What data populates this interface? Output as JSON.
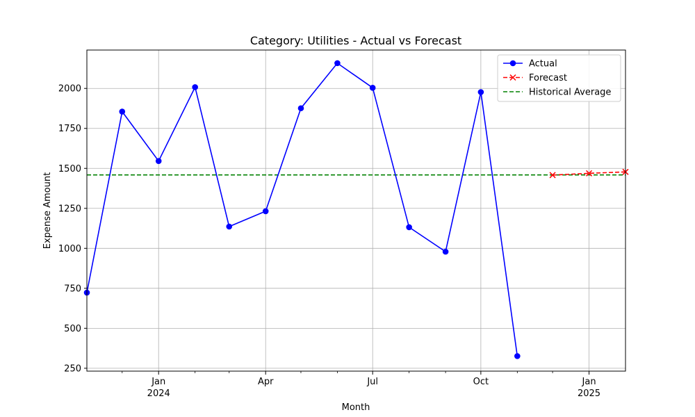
{
  "chart_data": {
    "type": "line",
    "title": "Category: Utilities - Actual vs Forecast",
    "xlabel": "Month",
    "ylabel": "Expense Amount",
    "x_range": [
      "2023-11-01",
      "2025-02-01"
    ],
    "ylim": [
      232,
      2240
    ],
    "y_ticks": [
      250,
      500,
      750,
      1000,
      1250,
      1500,
      1750,
      2000
    ],
    "x_major_ticks": [
      {
        "date": "2024-01-01",
        "label": "Jan",
        "sublabel": "2024"
      },
      {
        "date": "2024-04-01",
        "label": "Apr",
        "sublabel": ""
      },
      {
        "date": "2024-07-01",
        "label": "Jul",
        "sublabel": ""
      },
      {
        "date": "2024-10-01",
        "label": "Oct",
        "sublabel": ""
      },
      {
        "date": "2025-01-01",
        "label": "Jan",
        "sublabel": "2025"
      }
    ],
    "x_minor_ticks": [
      "2023-12-01",
      "2024-02-01",
      "2024-03-01",
      "2024-05-01",
      "2024-06-01",
      "2024-08-01",
      "2024-09-01",
      "2024-11-01",
      "2024-12-01"
    ],
    "grid": true,
    "legend_position": "top-right",
    "series": [
      {
        "name": "Actual",
        "style": "solid",
        "marker": "circle",
        "color": "#0000ff",
        "points": [
          {
            "x": "2023-11-01",
            "y": 723
          },
          {
            "x": "2023-12-01",
            "y": 1855
          },
          {
            "x": "2024-01-01",
            "y": 1546
          },
          {
            "x": "2024-02-01",
            "y": 2008
          },
          {
            "x": "2024-03-01",
            "y": 1136
          },
          {
            "x": "2024-04-01",
            "y": 1232
          },
          {
            "x": "2024-05-01",
            "y": 1876
          },
          {
            "x": "2024-06-01",
            "y": 2158
          },
          {
            "x": "2024-07-01",
            "y": 2004
          },
          {
            "x": "2024-08-01",
            "y": 1132
          },
          {
            "x": "2024-09-01",
            "y": 979
          },
          {
            "x": "2024-10-01",
            "y": 1977
          },
          {
            "x": "2024-11-01",
            "y": 326
          }
        ]
      },
      {
        "name": "Forecast",
        "style": "dashed",
        "marker": "x",
        "color": "#ff0000",
        "points": [
          {
            "x": "2024-12-01",
            "y": 1458
          },
          {
            "x": "2025-01-01",
            "y": 1469
          },
          {
            "x": "2025-02-01",
            "y": 1478
          }
        ]
      }
    ],
    "reference_lines": [
      {
        "name": "Historical Average",
        "y": 1459,
        "style": "dashed",
        "color": "#008000"
      }
    ]
  }
}
